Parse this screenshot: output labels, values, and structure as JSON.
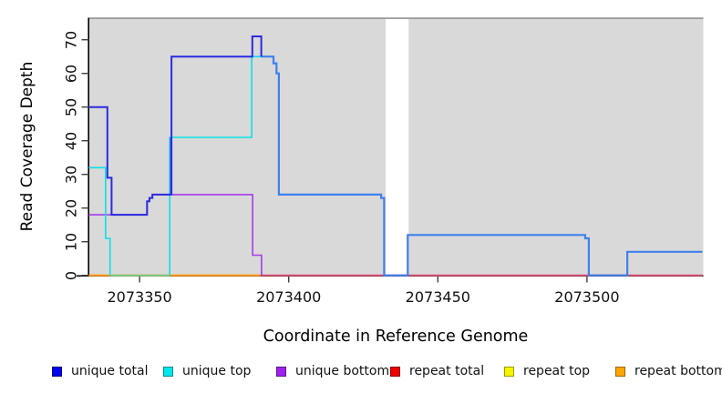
{
  "chart_data": {
    "type": "line",
    "subtype": "step-coverage-plot",
    "title": "",
    "xlabel": "Coordinate in Reference Genome",
    "ylabel": "Read Coverage Depth",
    "x_ticks": [
      2073350,
      2073400,
      2073450,
      2073500
    ],
    "y_ticks": [
      0,
      10,
      20,
      30,
      40,
      50,
      60,
      70
    ],
    "xlim": [
      2073333,
      2073539
    ],
    "ylim": [
      0,
      76
    ],
    "grid": false,
    "plot_background": "#d9d9d9",
    "coverage_gap_region": {
      "from": 2073432.5,
      "to": 2073440.2
    },
    "legend_position": "bottom",
    "series": [
      {
        "id": "repeat_bottom",
        "legend": "repeat bottom",
        "color": "#FF9E1B",
        "width": 2.2,
        "paths": [
          [
            [
              2073333,
              0
            ],
            [
              2073390.5,
              0
            ]
          ]
        ]
      },
      {
        "id": "zero_overlap_top_over_bottom",
        "legend": null,
        "color": "#7FCE8F",
        "width": 2,
        "paths": [
          [
            [
              2073340.1,
              0
            ],
            [
              2073360.1,
              0
            ]
          ]
        ]
      },
      {
        "id": "repeat_total",
        "legend": "repeat total",
        "color": "#D94F72",
        "width": 2,
        "paths": [
          [
            [
              2073390.5,
              0
            ],
            [
              2073538.7,
              0
            ]
          ]
        ]
      },
      {
        "id": "repeat_top",
        "legend": "repeat top",
        "color": "#F2F200",
        "width": 2,
        "paths": []
      },
      {
        "id": "unique_bottom",
        "legend": "unique bottom",
        "color": "#A63BEA",
        "width": 1.6,
        "paths": [
          [
            [
              2073333,
              18
            ],
            [
              2073352.5,
              22
            ],
            [
              2073353.3,
              23
            ],
            [
              2073354.3,
              24
            ],
            [
              2073387.9,
              6
            ],
            [
              2073390.9,
              0
            ]
          ]
        ]
      },
      {
        "id": "unique_top",
        "legend": "unique top",
        "color": "#0EDFE8",
        "width": 1.6,
        "paths": [
          [
            [
              2073333,
              32
            ],
            [
              2073338.6,
              11
            ],
            [
              2073340.1,
              0
            ]
          ],
          [
            [
              2073360.1,
              0
            ],
            [
              2073360.1,
              41
            ],
            [
              2073387.6,
              65
            ],
            [
              2073394.9,
              65
            ]
          ]
        ]
      },
      {
        "id": "total",
        "legend": null,
        "color": "#4080EC",
        "width": 2.2,
        "paths": [
          [
            [
              2073360.4,
              24
            ],
            [
              2073360.4,
              41
            ]
          ],
          [
            [
              2073390.8,
              65
            ],
            [
              2073394.9,
              63
            ],
            [
              2073395.9,
              60
            ],
            [
              2073396.7,
              24
            ],
            [
              2073431,
              23
            ],
            [
              2073432,
              0
            ],
            [
              2073439.9,
              12
            ],
            [
              2073499.4,
              11
            ],
            [
              2073500.6,
              0
            ],
            [
              2073513.5,
              7
            ],
            [
              2073538.7,
              7
            ]
          ]
        ]
      },
      {
        "id": "unique_total",
        "legend": "unique total",
        "color": "#2B2BE0",
        "width": 2,
        "paths": [
          [
            [
              2073333,
              50
            ],
            [
              2073339.2,
              29
            ],
            [
              2073340.6,
              18
            ],
            [
              2073352.5,
              22
            ],
            [
              2073353.3,
              23
            ],
            [
              2073354.3,
              24
            ],
            [
              2073360.7,
              65
            ],
            [
              2073387.8,
              71
            ],
            [
              2073390.8,
              65
            ]
          ]
        ]
      }
    ],
    "legend": [
      {
        "label": "unique total",
        "fill": "#0505EE",
        "border": "#000080"
      },
      {
        "label": "unique top",
        "fill": "#00E6EE",
        "border": "#008B8B"
      },
      {
        "label": "unique bottom",
        "fill": "#A020F0",
        "border": "#551A8B"
      },
      {
        "label": "repeat total",
        "fill": "#EE0000",
        "border": "#8B0000"
      },
      {
        "label": "repeat top",
        "fill": "#F5F500",
        "border": "#9A9A00"
      },
      {
        "label": "repeat bottom",
        "fill": "#FFA500",
        "border": "#A0650B"
      }
    ]
  }
}
